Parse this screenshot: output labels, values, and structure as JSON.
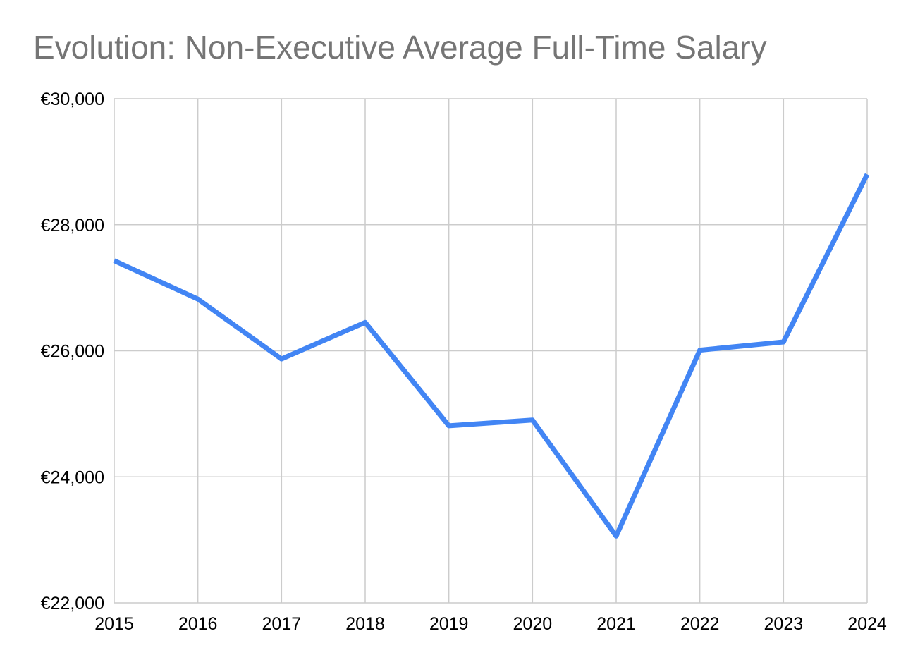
{
  "chart_data": {
    "type": "line",
    "title": "Evolution: Non-Executive Average Full-Time Salary",
    "xlabel": "",
    "ylabel": "",
    "x": [
      "2015",
      "2016",
      "2017",
      "2018",
      "2019",
      "2020",
      "2021",
      "2022",
      "2023",
      "2024"
    ],
    "series": [
      {
        "values": [
          27430,
          26820,
          25870,
          26450,
          24810,
          24900,
          23060,
          26010,
          26140,
          28800
        ]
      }
    ],
    "ylim": [
      22000,
      30000
    ],
    "yticks": [
      22000,
      24000,
      26000,
      28000,
      30000
    ],
    "ytick_labels": [
      "€22,000",
      "€24,000",
      "€26,000",
      "€28,000",
      "€30,000"
    ],
    "grid": true,
    "legend": "none",
    "colors": {
      "line": "#4285f4",
      "grid": "#cccccc",
      "title": "#757575"
    }
  }
}
